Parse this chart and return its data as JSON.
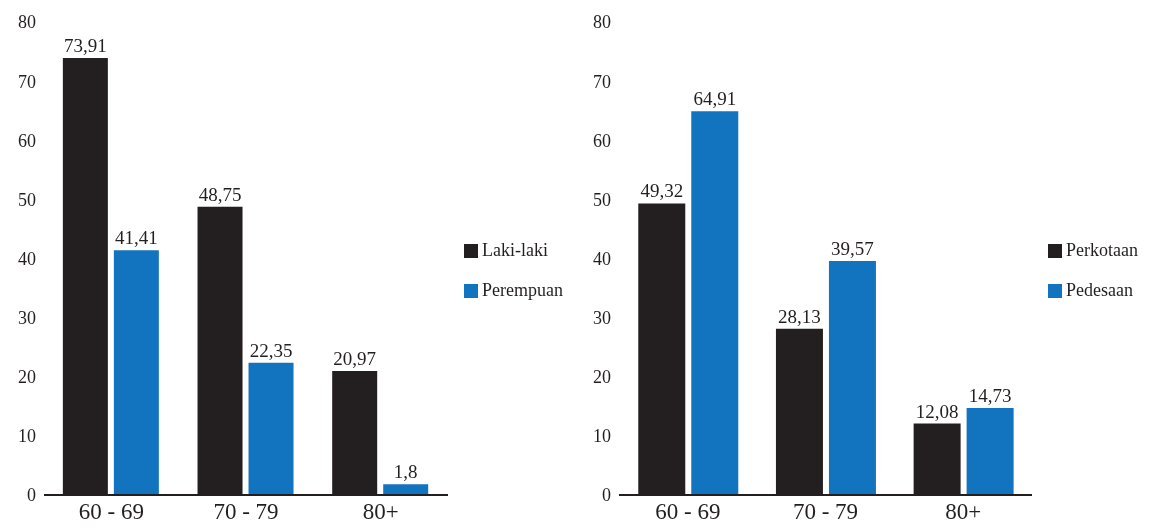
{
  "chart_data": [
    {
      "type": "bar",
      "categories": [
        "60 - 69",
        "70 - 79",
        "80+"
      ],
      "series": [
        {
          "name": "Laki-laki",
          "color": "#231f20",
          "values": [
            73.91,
            48.75,
            20.97
          ],
          "value_labels": [
            "73,91",
            "48,75",
            "20,97"
          ]
        },
        {
          "name": "Perempuan",
          "color": "#1273be",
          "values": [
            41.41,
            22.35,
            1.8
          ],
          "value_labels": [
            "41,41",
            "22,35",
            "1,8"
          ]
        }
      ],
      "ylim": [
        0,
        80
      ],
      "yticks": [
        0,
        10,
        20,
        30,
        40,
        50,
        60,
        70,
        80
      ],
      "grid": false,
      "legend": "right"
    },
    {
      "type": "bar",
      "categories": [
        "60 - 69",
        "70 - 79",
        "80+"
      ],
      "series": [
        {
          "name": "Perkotaan",
          "color": "#231f20",
          "values": [
            49.32,
            28.13,
            12.08
          ],
          "value_labels": [
            "49,32",
            "28,13",
            "12,08"
          ]
        },
        {
          "name": "Pedesaan",
          "color": "#1273be",
          "values": [
            64.91,
            39.57,
            14.73
          ],
          "value_labels": [
            "64,91",
            "39,57",
            "14,73"
          ]
        }
      ],
      "ylim": [
        0,
        80
      ],
      "yticks": [
        0,
        10,
        20,
        30,
        40,
        50,
        60,
        70,
        80
      ],
      "grid": false,
      "legend": "right"
    }
  ]
}
